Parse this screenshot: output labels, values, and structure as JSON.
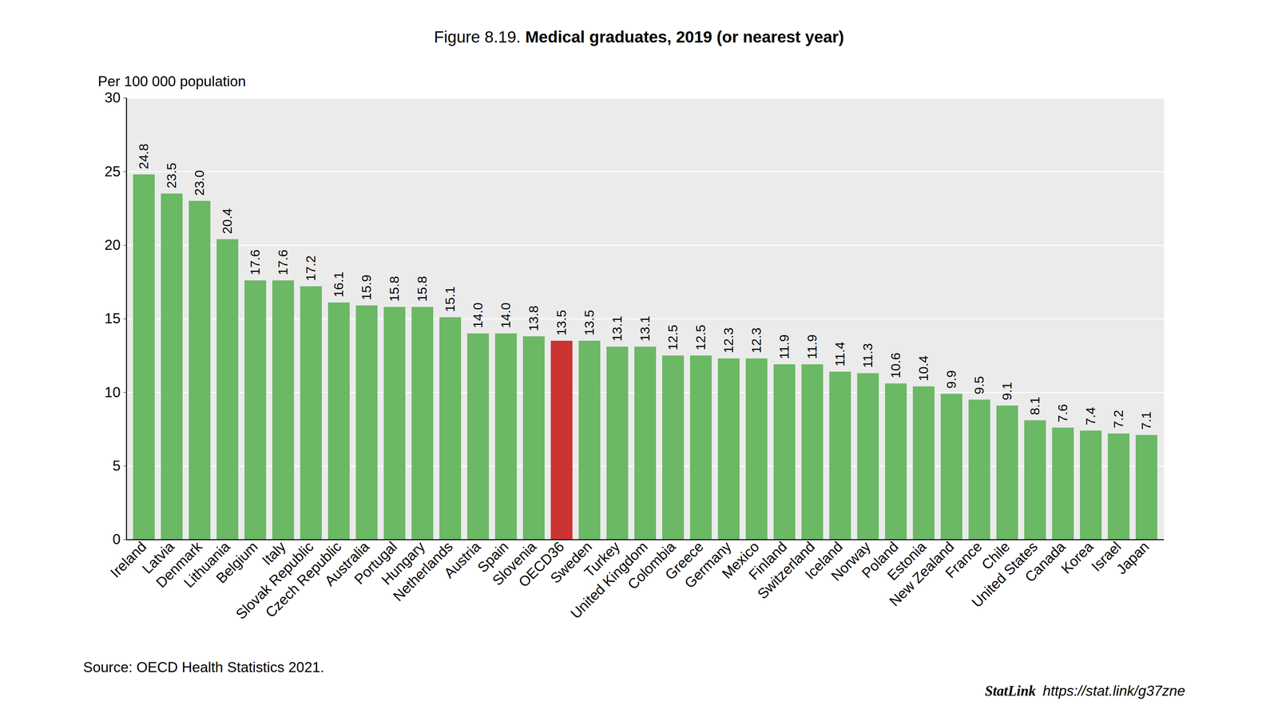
{
  "chart_data": {
    "type": "bar",
    "figure_number": "Figure 8.19.",
    "title": "Medical graduates, 2019 (or nearest year)",
    "y_label": "Per 100 000 population",
    "source": "Source: OECD Health Statistics 2021.",
    "statlink_label": "StatLink",
    "statlink": "https://stat.link/g37zne",
    "categories": [
      "Ireland",
      "Latvia",
      "Denmark",
      "Lithuania",
      "Belgium",
      "Italy",
      "Slovak Republic",
      "Czech Republic",
      "Australia",
      "Portugal",
      "Hungary",
      "Netherlands",
      "Austria",
      "Spain",
      "Slovenia",
      "OECD36",
      "Sweden",
      "Turkey",
      "United Kingdom",
      "Colombia",
      "Greece",
      "Germany",
      "Mexico",
      "Finland",
      "Switzerland",
      "Iceland",
      "Norway",
      "Poland",
      "Estonia",
      "New Zealand",
      "France",
      "Chile",
      "United States",
      "Canada",
      "Korea",
      "Israel",
      "Japan"
    ],
    "values": [
      24.8,
      23.5,
      23.0,
      20.4,
      17.6,
      17.6,
      17.2,
      16.1,
      15.9,
      15.8,
      15.8,
      15.1,
      14.0,
      14.0,
      13.8,
      13.5,
      13.5,
      13.1,
      13.1,
      12.5,
      12.5,
      12.3,
      12.3,
      11.9,
      11.9,
      11.4,
      11.3,
      10.6,
      10.4,
      9.9,
      9.5,
      9.1,
      8.1,
      7.6,
      7.4,
      7.2,
      7.1
    ],
    "value_labels": [
      "24.8",
      "23.5",
      "23.0",
      "20.4",
      "17.6",
      "17.6",
      "17.2",
      "16.1",
      "15.9",
      "15.8",
      "15.8",
      "15.1",
      "14.0",
      "14.0",
      "13.8",
      "13.5",
      "13.5",
      "13.1",
      "13.1",
      "12.5",
      "12.5",
      "12.3",
      "12.3",
      "11.9",
      "11.9",
      "11.4",
      "11.3",
      "10.6",
      "10.4",
      "9.9",
      "9.5",
      "9.1",
      "8.1",
      "7.6",
      "7.4",
      "7.2",
      "7.1"
    ],
    "colors": [
      "#6bb865",
      "#6bb865",
      "#6bb865",
      "#6bb865",
      "#6bb865",
      "#6bb865",
      "#6bb865",
      "#6bb865",
      "#6bb865",
      "#6bb865",
      "#6bb865",
      "#6bb865",
      "#6bb865",
      "#6bb865",
      "#6bb865",
      "#cc3333",
      "#6bb865",
      "#6bb865",
      "#6bb865",
      "#6bb865",
      "#6bb865",
      "#6bb865",
      "#6bb865",
      "#6bb865",
      "#6bb865",
      "#6bb865",
      "#6bb865",
      "#6bb865",
      "#6bb865",
      "#6bb865",
      "#6bb865",
      "#6bb865",
      "#6bb865",
      "#6bb865",
      "#6bb865",
      "#6bb865",
      "#6bb865"
    ],
    "ylim": [
      0,
      30
    ],
    "yticks": [
      0,
      5,
      10,
      15,
      20,
      25,
      30
    ],
    "grid": true,
    "data_labels": true
  }
}
